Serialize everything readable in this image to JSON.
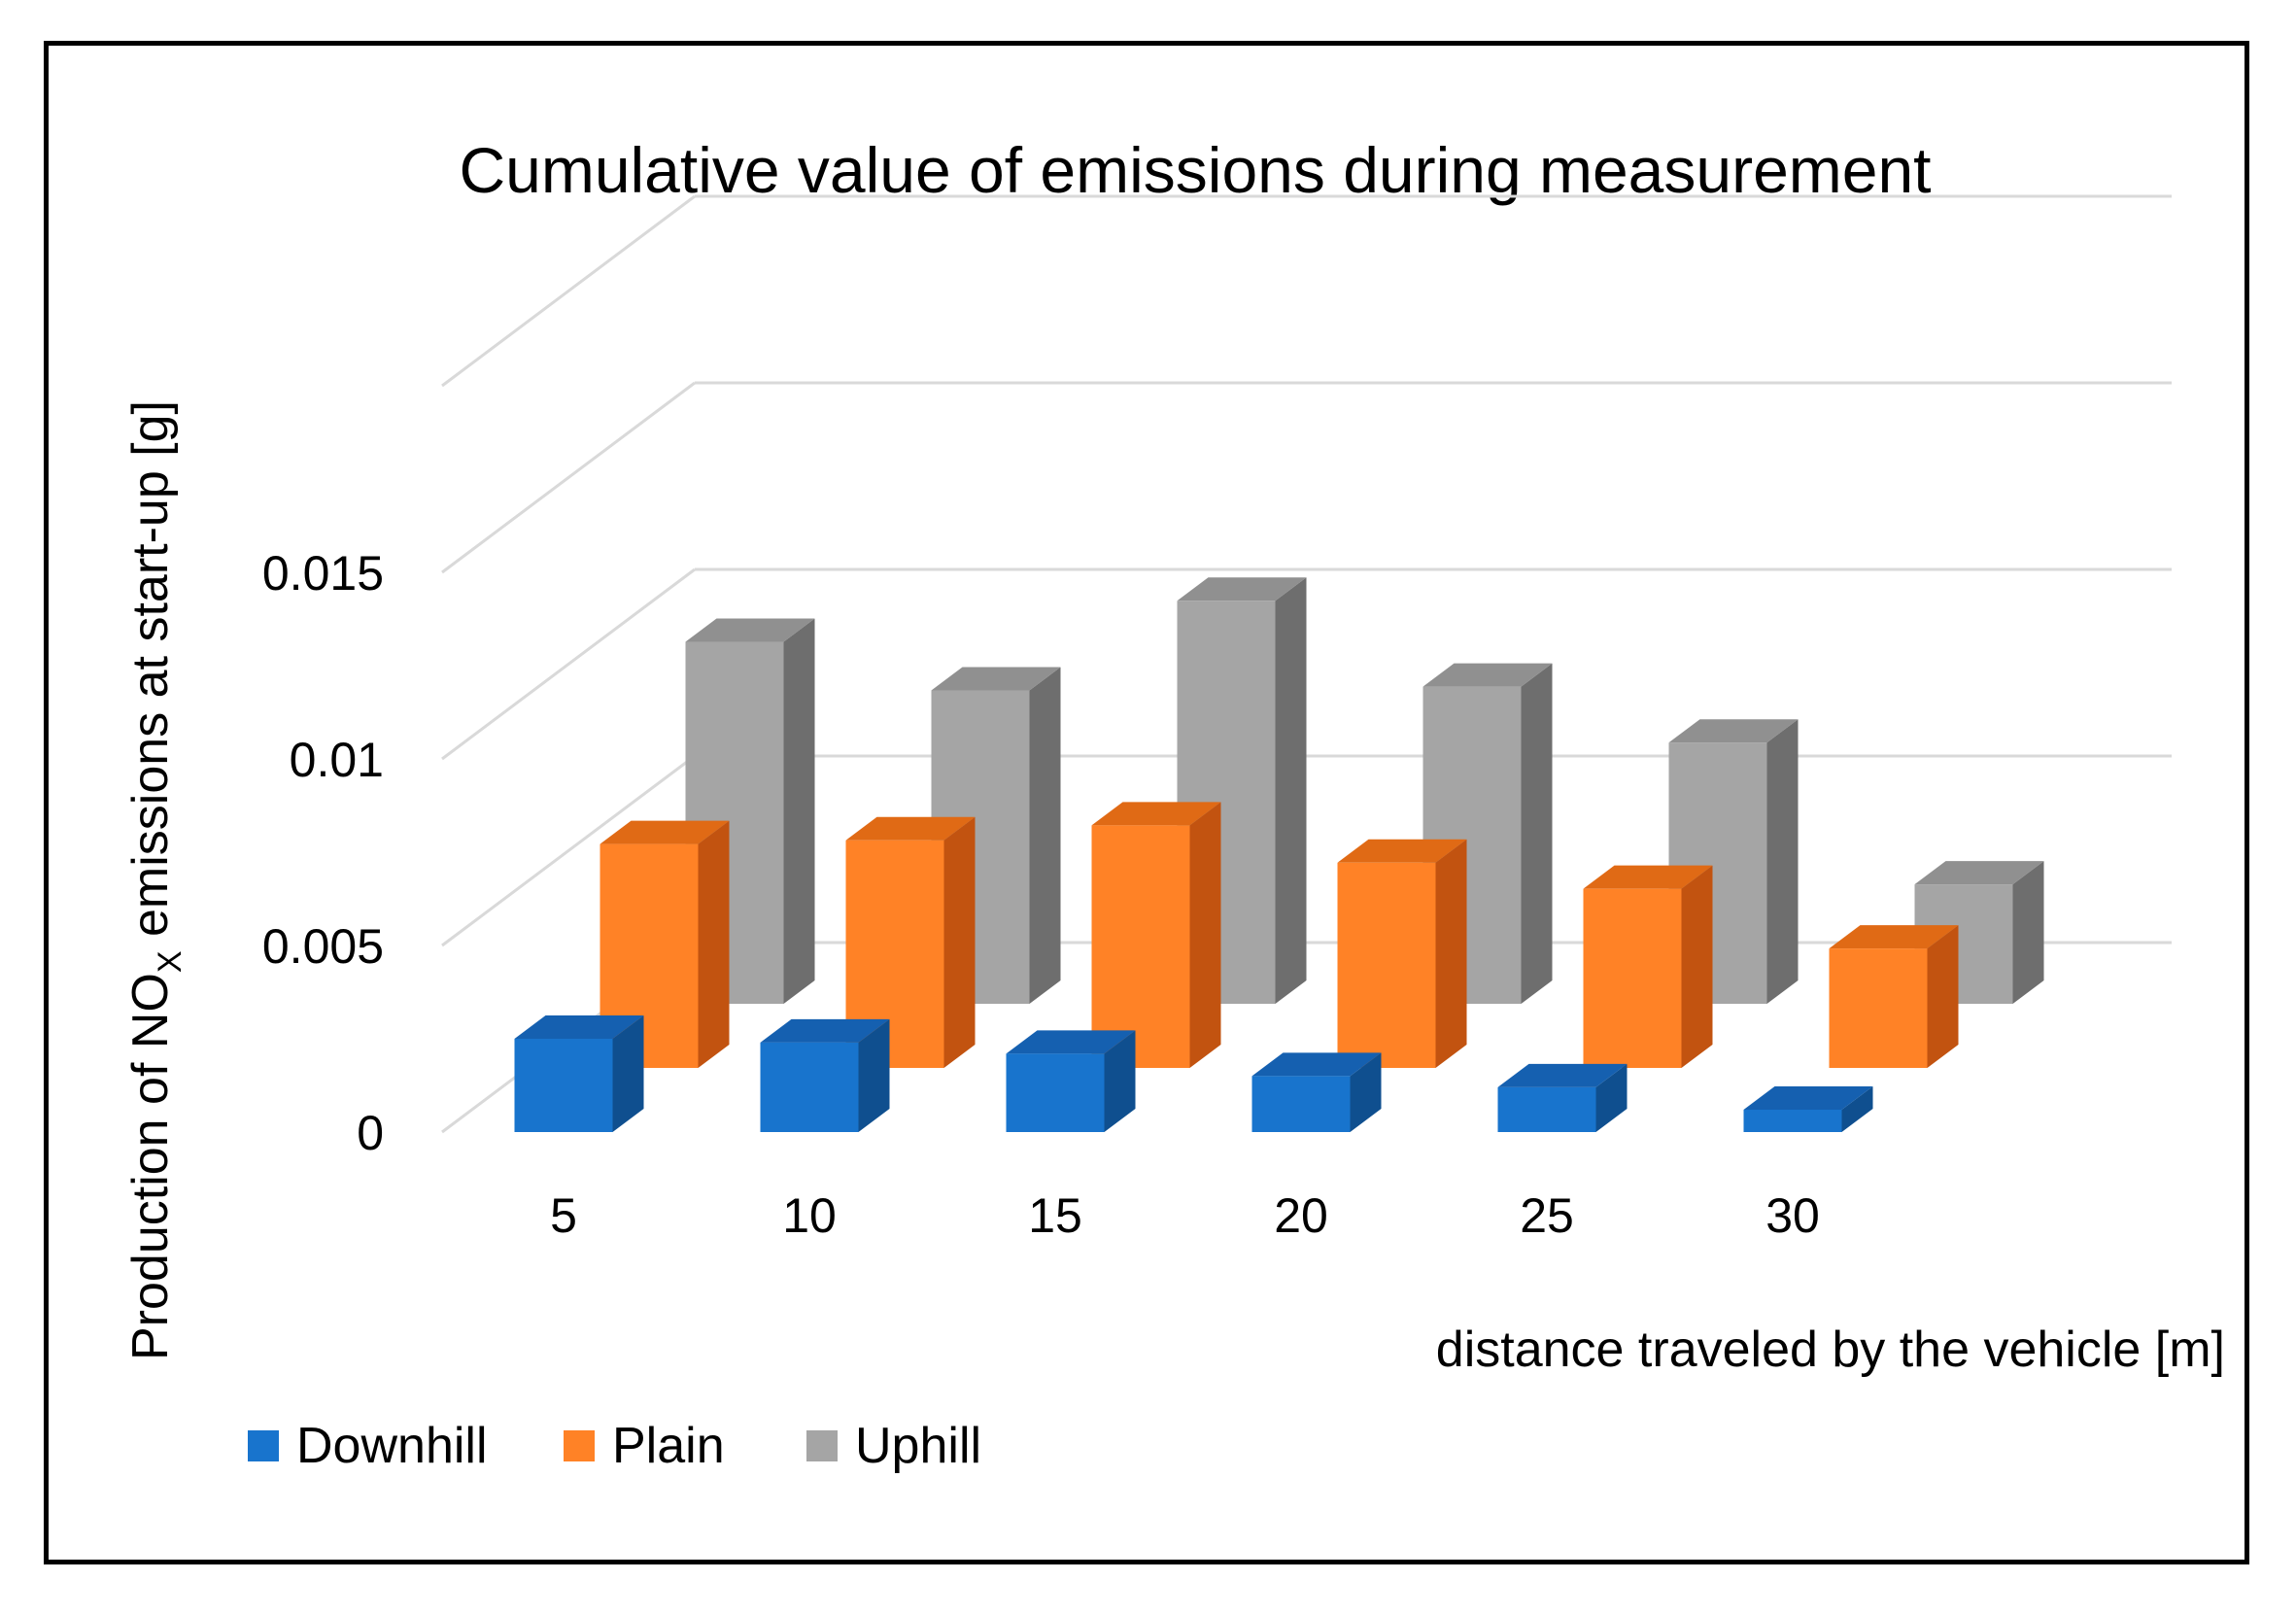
{
  "chart_data": {
    "type": "bar",
    "variant": "3d-column",
    "title": "Cumulative value of emissions during measurement",
    "ylabel_main": "Production of NO",
    "ylabel_subscript": "X",
    "ylabel_rest": " emissions at start-up [g]",
    "xlabel": "distance traveled by the vehicle  [m]",
    "categories": [
      "5",
      "10",
      "15",
      "20",
      "25",
      "30"
    ],
    "yticks": [
      0,
      0.005,
      0.01,
      0.015
    ],
    "ytick_labels": [
      "0",
      "0.005",
      "0.01",
      "0.015"
    ],
    "ylim": [
      0,
      0.02
    ],
    "grid": true,
    "legend_position": "bottom-left",
    "series": [
      {
        "name": "Downhill",
        "color": "#1874CD",
        "side_color": "#0F4F8F",
        "top_color": "#1560B0",
        "values": [
          0.0025,
          0.0024,
          0.0021,
          0.0015,
          0.0012,
          0.0006
        ]
      },
      {
        "name": "Plain",
        "color": "#FF8226",
        "side_color": "#C25310",
        "top_color": "#E06A15",
        "values": [
          0.006,
          0.0061,
          0.0065,
          0.0055,
          0.0048,
          0.0032
        ]
      },
      {
        "name": "Uphill",
        "color": "#A5A5A5",
        "side_color": "#6E6E6E",
        "top_color": "#909090",
        "values": [
          0.0097,
          0.0084,
          0.0108,
          0.0085,
          0.007,
          0.0032
        ]
      }
    ]
  }
}
